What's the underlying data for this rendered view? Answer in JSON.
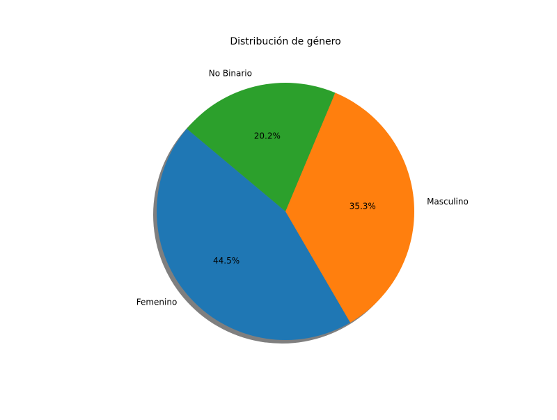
{
  "chart_data": {
    "type": "pie",
    "title": "Distribución de género",
    "labels": [
      "Femenino",
      "Masculino",
      "No Binario"
    ],
    "values": [
      44.5,
      35.3,
      20.2
    ],
    "percent_labels": [
      "44.5%",
      "35.3%",
      "20.2%"
    ],
    "colors": [
      "#1f77b4",
      "#ff7f0e",
      "#2ca02c"
    ],
    "start_angle_deg": 140,
    "shadow": true
  }
}
